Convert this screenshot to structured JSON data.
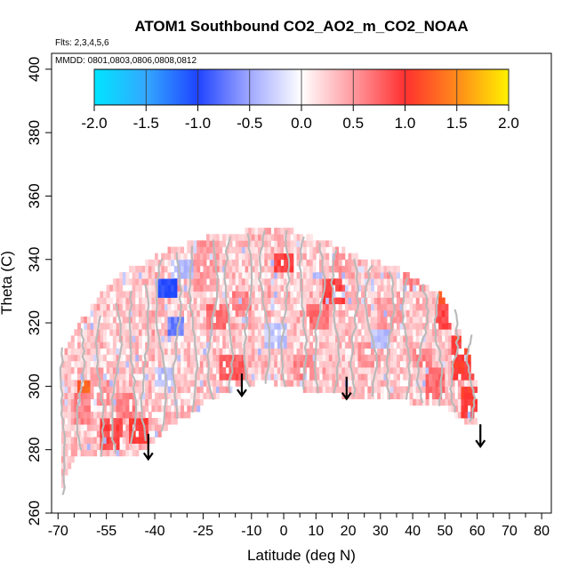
{
  "chart_data": {
    "type": "heatmap",
    "title": "ATOM1 Southbound CO2_AO2_m_CO2_NOAA",
    "subtitle_flights": "Flts: 2,3,4,5,6",
    "subtitle_dates": "MMDD: 0801,0803,0806,0808,0812",
    "xlabel": "Latitude (deg N)",
    "ylabel": "Theta (C)",
    "xlim": [
      -72,
      83
    ],
    "ylim": [
      260,
      405
    ],
    "x_ticks": [
      -70,
      -55,
      -40,
      -25,
      -10,
      0,
      10,
      20,
      30,
      40,
      50,
      60,
      70,
      80
    ],
    "x_tick_labels": [
      "-70",
      "-55",
      "-40",
      "-25",
      "-10",
      "0",
      "10",
      "20",
      "30",
      "40",
      "50",
      "60",
      "70",
      "80"
    ],
    "x_minor_ticks": [
      -65,
      -60,
      -50,
      -45,
      -35,
      -30,
      -20,
      -15,
      -5,
      5,
      15,
      25,
      35,
      45,
      55,
      65,
      75
    ],
    "y_ticks": [
      260,
      280,
      300,
      320,
      340,
      360,
      380,
      400
    ],
    "y_tick_labels": [
      "260",
      "280",
      "300",
      "320",
      "340",
      "360",
      "380",
      "400"
    ],
    "colorbar": {
      "range": [
        -2,
        2
      ],
      "ticks": [
        -2,
        -1.5,
        -1,
        -0.5,
        0,
        0.5,
        1,
        1.5,
        2
      ],
      "tick_labels": [
        "-2.0",
        "-1.5",
        "-1.0",
        "-0.5",
        "0.0",
        "0.5",
        "1.0",
        "1.5",
        "2.0"
      ],
      "colors": [
        "#00e5ff",
        "#33a8ff",
        "#1f44ff",
        "#a0a8ff",
        "#ffffff",
        "#ff9aa0",
        "#ff3030",
        "#ff8a1a",
        "#fff200"
      ]
    },
    "envelope": {
      "lat": [
        -69,
        -66,
        -63,
        -60,
        -57,
        -54,
        -51,
        -48,
        -45,
        -42,
        -39,
        -36,
        -33,
        -30,
        -27,
        -24,
        -21,
        -18,
        -15,
        -12,
        -9,
        -6,
        -3,
        0,
        3,
        6,
        9,
        12,
        15,
        18,
        21,
        24,
        27,
        30,
        33,
        36,
        39,
        42,
        45,
        48,
        51,
        54,
        57,
        60
      ],
      "theta_min": [
        268,
        276,
        279,
        280,
        279,
        278,
        278,
        279,
        280,
        282,
        285,
        288,
        290,
        291,
        293,
        295,
        297,
        299,
        300,
        301,
        302,
        302,
        302,
        301,
        300,
        300,
        299,
        298,
        298,
        298,
        297,
        297,
        297,
        296,
        296,
        296,
        296,
        295,
        295,
        295,
        293,
        291,
        289,
        288
      ],
      "theta_max": [
        308,
        315,
        320,
        324,
        328,
        331,
        334,
        336,
        337,
        339,
        341,
        342,
        343,
        344,
        345,
        346,
        347,
        347,
        348,
        348,
        349,
        349,
        349,
        349,
        348,
        347,
        346,
        345,
        344,
        343,
        341,
        340,
        339,
        338,
        337,
        336,
        334,
        333,
        331,
        329,
        325,
        318,
        310,
        300
      ]
    },
    "patches": [
      {
        "lat": [
          -69,
          -66
        ],
        "theta": [
          278,
          294
        ],
        "value": 0.25
      },
      {
        "lat": [
          -65,
          -60
        ],
        "theta": [
          288,
          298
        ],
        "value": 0.6
      },
      {
        "lat": [
          -64,
          -60
        ],
        "theta": [
          298,
          302
        ],
        "value": 1.3
      },
      {
        "lat": [
          -60,
          -54
        ],
        "theta": [
          295,
          305
        ],
        "value": 0.5
      },
      {
        "lat": [
          -57,
          -50
        ],
        "theta": [
          281,
          290
        ],
        "value": 0.9
      },
      {
        "lat": [
          -48,
          -42
        ],
        "theta": [
          282,
          290
        ],
        "value": 1.0
      },
      {
        "lat": [
          -52,
          -46
        ],
        "theta": [
          290,
          298
        ],
        "value": 0.6
      },
      {
        "lat": [
          -40,
          -34
        ],
        "theta": [
          300,
          306
        ],
        "value": -0.35
      },
      {
        "lat": [
          -39,
          -33
        ],
        "theta": [
          329,
          334
        ],
        "value": -1.0
      },
      {
        "lat": [
          -36,
          -31
        ],
        "theta": [
          317,
          322
        ],
        "value": -0.7
      },
      {
        "lat": [
          -35,
          -28
        ],
        "theta": [
          334,
          340
        ],
        "value": -0.4
      },
      {
        "lat": [
          -28,
          -20
        ],
        "theta": [
          330,
          346
        ],
        "value": 0.5
      },
      {
        "lat": [
          -24,
          -17
        ],
        "theta": [
          318,
          326
        ],
        "value": 0.7
      },
      {
        "lat": [
          -20,
          -12
        ],
        "theta": [
          303,
          310
        ],
        "value": 0.8
      },
      {
        "lat": [
          -16,
          -10
        ],
        "theta": [
          322,
          330
        ],
        "value": 0.6
      },
      {
        "lat": [
          -6,
          1
        ],
        "theta": [
          312,
          320
        ],
        "value": -0.3
      },
      {
        "lat": [
          -3,
          4
        ],
        "theta": [
          336,
          342
        ],
        "value": 0.9
      },
      {
        "lat": [
          3,
          10
        ],
        "theta": [
          303,
          310
        ],
        "value": 0.6
      },
      {
        "lat": [
          7,
          14
        ],
        "theta": [
          318,
          326
        ],
        "value": 0.7
      },
      {
        "lat": [
          12,
          19
        ],
        "theta": [
          326,
          334
        ],
        "value": 0.9
      },
      {
        "lat": [
          15,
          21
        ],
        "theta": [
          334,
          341
        ],
        "value": 0.5
      },
      {
        "lat": [
          19,
          25
        ],
        "theta": [
          322,
          330
        ],
        "value": 0.4
      },
      {
        "lat": [
          23,
          31
        ],
        "theta": [
          306,
          314
        ],
        "value": 0.5
      },
      {
        "lat": [
          27,
          33
        ],
        "theta": [
          312,
          318
        ],
        "value": -0.35
      },
      {
        "lat": [
          29,
          37
        ],
        "theta": [
          318,
          328
        ],
        "value": 0.5
      },
      {
        "lat": [
          37,
          44
        ],
        "theta": [
          330,
          336
        ],
        "value": 0.6
      },
      {
        "lat": [
          40,
          46
        ],
        "theta": [
          306,
          312
        ],
        "value": 0.6
      },
      {
        "lat": [
          44,
          50
        ],
        "theta": [
          296,
          306
        ],
        "value": 0.7
      },
      {
        "lat": [
          47,
          52
        ],
        "theta": [
          318,
          326
        ],
        "value": 0.9
      },
      {
        "lat": [
          48,
          52
        ],
        "theta": [
          326,
          329
        ],
        "value": 1.3
      },
      {
        "lat": [
          52,
          59
        ],
        "theta": [
          303,
          316
        ],
        "value": 1.0
      },
      {
        "lat": [
          55,
          60
        ],
        "theta": [
          290,
          300
        ],
        "value": 1.0
      },
      {
        "lat": [
          52,
          57
        ],
        "theta": [
          320,
          328
        ],
        "value": 0.7
      }
    ],
    "arrows": [
      {
        "lat": -42,
        "theta_start": 285,
        "theta_end": 277
      },
      {
        "lat": -13,
        "theta_start": 304,
        "theta_end": 297
      },
      {
        "lat": 19.5,
        "theta_start": 303,
        "theta_end": 296
      },
      {
        "lat": 61,
        "theta_start": 288,
        "theta_end": 281
      }
    ],
    "profiles": [
      {
        "lat": -68.5,
        "theta": [
          266,
          312
        ],
        "drift": 0.5
      },
      {
        "lat": -63,
        "theta": [
          280,
          318
        ],
        "drift": -1
      },
      {
        "lat": -57,
        "theta": [
          278,
          322
        ],
        "drift": 1
      },
      {
        "lat": -52,
        "theta": [
          279,
          326
        ],
        "drift": -1.5
      },
      {
        "lat": -47,
        "theta": [
          282,
          330
        ],
        "drift": 1
      },
      {
        "lat": -43,
        "theta": [
          283,
          332
        ],
        "drift": -1
      },
      {
        "lat": -38,
        "theta": [
          286,
          340
        ],
        "drift": 1.5
      },
      {
        "lat": -33,
        "theta": [
          290,
          342
        ],
        "drift": -1
      },
      {
        "lat": -28,
        "theta": [
          292,
          344
        ],
        "drift": 1
      },
      {
        "lat": -22,
        "theta": [
          296,
          346
        ],
        "drift": -1.5
      },
      {
        "lat": -17,
        "theta": [
          298,
          347
        ],
        "drift": 1
      },
      {
        "lat": -11,
        "theta": [
          300,
          348
        ],
        "drift": -1
      },
      {
        "lat": -6,
        "theta": [
          301,
          349
        ],
        "drift": 1.5
      },
      {
        "lat": 0.5,
        "theta": [
          300,
          349
        ],
        "drift": -1
      },
      {
        "lat": 6,
        "theta": [
          299,
          347
        ],
        "drift": 1
      },
      {
        "lat": 11,
        "theta": [
          298,
          345
        ],
        "drift": -1.5
      },
      {
        "lat": 16,
        "theta": [
          298,
          343
        ],
        "drift": 1
      },
      {
        "lat": 22,
        "theta": [
          297,
          340
        ],
        "drift": -1
      },
      {
        "lat": 27,
        "theta": [
          297,
          338
        ],
        "drift": 1.5
      },
      {
        "lat": 33,
        "theta": [
          296,
          336
        ],
        "drift": -1
      },
      {
        "lat": 38,
        "theta": [
          296,
          334
        ],
        "drift": 1
      },
      {
        "lat": 43,
        "theta": [
          295,
          332
        ],
        "drift": -1.5
      },
      {
        "lat": 48,
        "theta": [
          294,
          329
        ],
        "drift": 1
      },
      {
        "lat": 53,
        "theta": [
          292,
          324
        ],
        "drift": -1
      },
      {
        "lat": 58,
        "theta": [
          289,
          316
        ],
        "drift": 1
      }
    ]
  }
}
